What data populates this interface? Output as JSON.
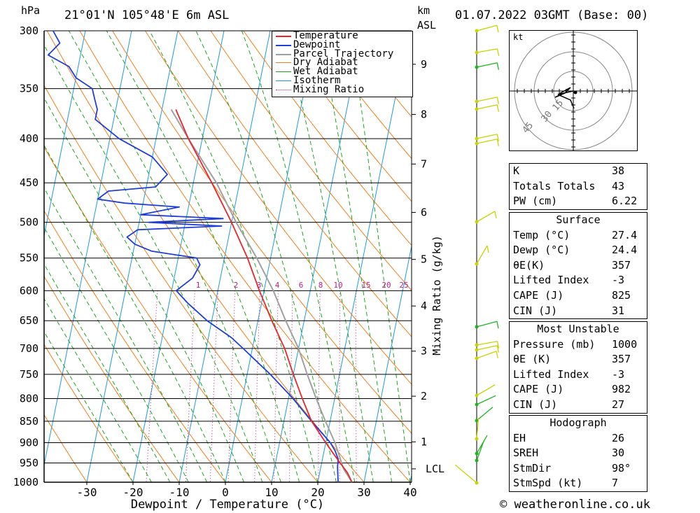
{
  "header": {
    "hpa_label": "hPa",
    "location": "21°01'N 105°48'E 6m ASL",
    "km_label": "km",
    "asl_label": "ASL",
    "datetime": "01.07.2022 03GMT (Base: 00)"
  },
  "footer": {
    "copyright": "© weatheronline.co.uk"
  },
  "chart_data": {
    "type": "skewt",
    "xlabel": "Dewpoint / Temperature (°C)",
    "ylabel_right": "Mixing Ratio (g/kg)",
    "pressure_levels": [
      300,
      350,
      400,
      450,
      500,
      550,
      600,
      650,
      700,
      750,
      800,
      850,
      900,
      950,
      1000
    ],
    "x_ticks": [
      -30,
      -20,
      -10,
      0,
      10,
      20,
      30,
      40
    ],
    "km_ticks": [
      {
        "km": "1",
        "p": 898
      },
      {
        "km": "2",
        "p": 795
      },
      {
        "km": "3",
        "p": 705
      },
      {
        "km": "4",
        "p": 625
      },
      {
        "km": "5",
        "p": 552
      },
      {
        "km": "6",
        "p": 487
      },
      {
        "km": "7",
        "p": 428
      },
      {
        "km": "8",
        "p": 375
      },
      {
        "km": "9",
        "p": 328
      }
    ],
    "lcl_label": "LCL",
    "lcl_pressure": 965,
    "mixing_ratio_labels": [
      "1",
      "2",
      "3",
      "4",
      "6",
      "8",
      "10",
      "15",
      "20",
      "25"
    ],
    "legend": [
      "Temperature",
      "Dewpoint",
      "Parcel Trajectory",
      "Dry Adiabat",
      "Wet Adiabat",
      "Isotherm",
      "Mixing Ratio"
    ],
    "colors": {
      "temperature": "#e8262c",
      "dewpoint": "#1f3fd8",
      "parcel": "#a0a0a0",
      "dry_adiabat": "#f07f1c",
      "wet_adiabat": "#1da51d",
      "isotherm": "#1b9ae0",
      "mixing_ratio": "#c21e87",
      "wind_ok": "#c8d400",
      "wind_green": "#1eb41e"
    },
    "temperature": [
      [
        1000,
        27.4
      ],
      [
        975,
        26
      ],
      [
        950,
        24
      ],
      [
        925,
        22
      ],
      [
        900,
        20
      ],
      [
        850,
        16
      ],
      [
        800,
        13
      ],
      [
        750,
        10
      ],
      [
        700,
        7
      ],
      [
        650,
        3
      ],
      [
        600,
        -1
      ],
      [
        550,
        -5
      ],
      [
        500,
        -10
      ],
      [
        450,
        -16
      ],
      [
        400,
        -23
      ],
      [
        370,
        -27
      ]
    ],
    "dewpoint": [
      [
        1000,
        24.4
      ],
      [
        980,
        24
      ],
      [
        960,
        23.6
      ],
      [
        940,
        23.4
      ],
      [
        920,
        22.4
      ],
      [
        900,
        21
      ],
      [
        850,
        16
      ],
      [
        800,
        11
      ],
      [
        750,
        5
      ],
      [
        700,
        -2
      ],
      [
        680,
        -5
      ],
      [
        650,
        -11
      ],
      [
        620,
        -16
      ],
      [
        600,
        -19
      ],
      [
        580,
        -16
      ],
      [
        560,
        -15
      ],
      [
        550,
        -16
      ],
      [
        540,
        -26
      ],
      [
        530,
        -30
      ],
      [
        520,
        -32
      ],
      [
        510,
        -30
      ],
      [
        505,
        -12
      ],
      [
        500,
        -28
      ],
      [
        495,
        -12
      ],
      [
        490,
        -30
      ],
      [
        480,
        -22
      ],
      [
        475,
        -34
      ],
      [
        470,
        -40
      ],
      [
        460,
        -38
      ],
      [
        455,
        -28
      ],
      [
        440,
        -26
      ],
      [
        420,
        -30
      ],
      [
        400,
        -38
      ],
      [
        380,
        -44
      ],
      [
        370,
        -44
      ],
      [
        360,
        -45
      ],
      [
        350,
        -46
      ],
      [
        340,
        -50
      ],
      [
        330,
        -52
      ],
      [
        320,
        -57
      ],
      [
        310,
        -55
      ],
      [
        300,
        -57
      ]
    ],
    "parcel": [
      [
        1000,
        27.4
      ],
      [
        965,
        25
      ],
      [
        900,
        22
      ],
      [
        850,
        19
      ],
      [
        800,
        16
      ],
      [
        750,
        13
      ],
      [
        700,
        10
      ],
      [
        650,
        6
      ],
      [
        600,
        2
      ],
      [
        550,
        -3
      ],
      [
        500,
        -9
      ],
      [
        450,
        -15
      ],
      [
        400,
        -23
      ],
      [
        370,
        -28
      ]
    ]
  },
  "hodograph": {
    "kt_label": "kt",
    "ring_labels": [
      "15",
      "30",
      "45"
    ]
  },
  "table": {
    "indices": [
      {
        "k": "K",
        "v": "38"
      },
      {
        "k": "Totals Totals",
        "v": "43"
      },
      {
        "k": "PW (cm)",
        "v": "6.22"
      }
    ],
    "surface_title": "Surface",
    "surface": [
      {
        "k": "Temp (°C)",
        "v": "27.4"
      },
      {
        "k": "Dewp (°C)",
        "v": "24.4"
      },
      {
        "k": "θE(K)",
        "v": "357"
      },
      {
        "k": "Lifted Index",
        "v": "-3"
      },
      {
        "k": "CAPE (J)",
        "v": "825"
      },
      {
        "k": "CIN (J)",
        "v": "31"
      }
    ],
    "mu_title": "Most Unstable",
    "mu": [
      {
        "k": "Pressure (mb)",
        "v": "1000"
      },
      {
        "k": "θE (K)",
        "v": "357"
      },
      {
        "k": "Lifted Index",
        "v": "-3"
      },
      {
        "k": "CAPE (J)",
        "v": "982"
      },
      {
        "k": "CIN (J)",
        "v": "27"
      }
    ],
    "hodo_title": "Hodograph",
    "hodo": [
      {
        "k": "EH",
        "v": "26"
      },
      {
        "k": "SREH",
        "v": "30"
      },
      {
        "k": "StmDir",
        "v": "98°"
      },
      {
        "k": "StmSpd (kt)",
        "v": "7"
      }
    ]
  }
}
